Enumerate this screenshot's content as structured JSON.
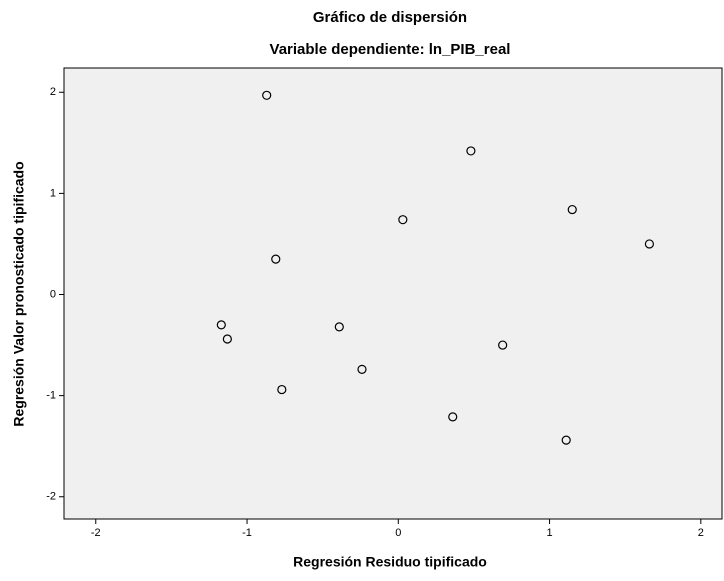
{
  "chart_data": {
    "type": "scatter",
    "title": "Gráfico de dispersión",
    "subtitle": "Variable dependiente: ln_PIB_real",
    "x_label": "Regresión Residuo tipificado",
    "y_label": "Regresión Valor pronosticado tipificado",
    "x": [
      -0.87,
      0.48,
      0.03,
      1.15,
      1.66,
      -0.81,
      -1.17,
      -1.13,
      -0.39,
      0.69,
      -0.24,
      -0.77,
      0.36,
      1.11
    ],
    "values": [
      1.97,
      1.42,
      0.74,
      0.84,
      0.5,
      0.35,
      -0.3,
      -0.44,
      -0.32,
      -0.5,
      -0.74,
      -0.94,
      -1.21,
      -1.44
    ],
    "xlim": [
      -2.21,
      2.14
    ],
    "xticks": [
      -2,
      -1,
      0,
      1,
      2
    ],
    "ylim": [
      -2.22,
      2.24
    ],
    "yticks": [
      -2,
      -1,
      0,
      1,
      2
    ],
    "color": "#000000"
  }
}
